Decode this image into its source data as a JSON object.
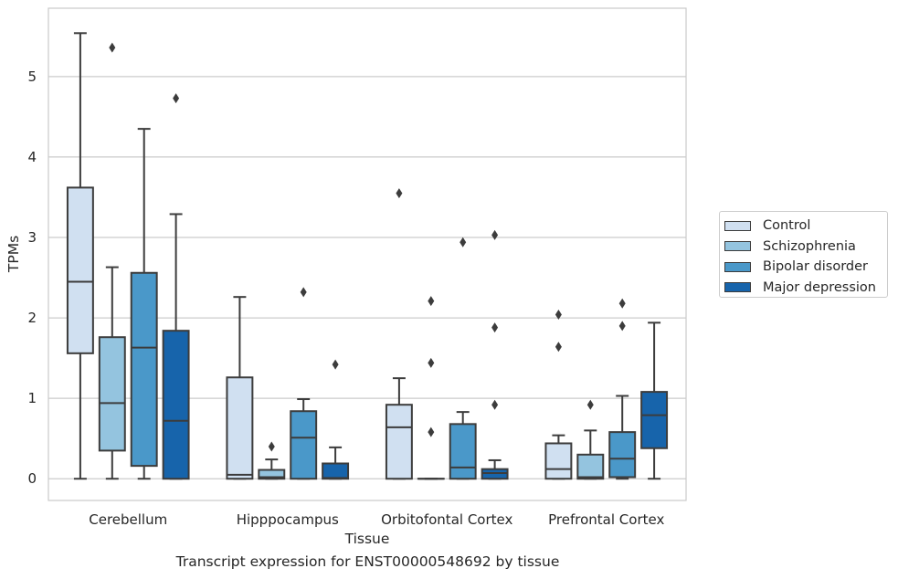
{
  "chart_data": {
    "type": "box",
    "xlabel": "Tissue",
    "ylabel": "TPMs",
    "caption": "Transcript expression for ENST00000548692 by tissue",
    "ylim": [
      -0.27,
      5.85
    ],
    "yticks": [
      0,
      1,
      2,
      3,
      4,
      5
    ],
    "categories": [
      "Cerebellum",
      "Hipppocampus",
      "Orbitofontal Cortex",
      "Prefrontal Cortex"
    ],
    "grid": "horizontal",
    "legend_position": "right",
    "series": [
      {
        "name": "Control",
        "color": "#d0e0f1",
        "boxes": [
          {
            "whislo": 0.0,
            "q1": 1.56,
            "med": 2.45,
            "q3": 3.62,
            "whishi": 5.54,
            "fliers": []
          },
          {
            "whislo": 0.0,
            "q1": 0.0,
            "med": 0.05,
            "q3": 1.26,
            "whishi": 2.26,
            "fliers": []
          },
          {
            "whislo": 0.0,
            "q1": 0.0,
            "med": 0.64,
            "q3": 0.92,
            "whishi": 1.25,
            "fliers": [
              3.55
            ]
          },
          {
            "whislo": 0.0,
            "q1": 0.0,
            "med": 0.12,
            "q3": 0.44,
            "whishi": 0.54,
            "fliers": [
              1.64,
              2.04
            ]
          }
        ]
      },
      {
        "name": "Schizophrenia",
        "color": "#94c4df",
        "boxes": [
          {
            "whislo": 0.0,
            "q1": 0.35,
            "med": 0.94,
            "q3": 1.76,
            "whishi": 2.63,
            "fliers": [
              5.36
            ]
          },
          {
            "whislo": 0.0,
            "q1": 0.0,
            "med": 0.02,
            "q3": 0.11,
            "whishi": 0.24,
            "fliers": [
              0.4
            ]
          },
          {
            "whislo": 0.0,
            "q1": 0.0,
            "med": 0.0,
            "q3": 0.0,
            "whishi": 0.0,
            "fliers": [
              0.58,
              1.44,
              2.21
            ]
          },
          {
            "whislo": 0.0,
            "q1": 0.0,
            "med": 0.02,
            "q3": 0.3,
            "whishi": 0.6,
            "fliers": [
              0.92
            ]
          }
        ]
      },
      {
        "name": "Bipolar disorder",
        "color": "#4a98c9",
        "boxes": [
          {
            "whislo": 0.0,
            "q1": 0.16,
            "med": 1.63,
            "q3": 2.56,
            "whishi": 4.35,
            "fliers": []
          },
          {
            "whislo": 0.0,
            "q1": 0.0,
            "med": 0.51,
            "q3": 0.84,
            "whishi": 0.99,
            "fliers": [
              2.32
            ]
          },
          {
            "whislo": 0.0,
            "q1": 0.0,
            "med": 0.14,
            "q3": 0.68,
            "whishi": 0.83,
            "fliers": [
              2.94
            ]
          },
          {
            "whislo": 0.0,
            "q1": 0.02,
            "med": 0.25,
            "q3": 0.58,
            "whishi": 1.03,
            "fliers": [
              1.9,
              2.18
            ]
          }
        ]
      },
      {
        "name": "Major depression",
        "color": "#1764ab",
        "boxes": [
          {
            "whislo": 0.0,
            "q1": 0.0,
            "med": 0.72,
            "q3": 1.84,
            "whishi": 3.29,
            "fliers": [
              4.73
            ]
          },
          {
            "whislo": 0.0,
            "q1": 0.0,
            "med": 0.01,
            "q3": 0.19,
            "whishi": 0.39,
            "fliers": [
              1.42
            ]
          },
          {
            "whislo": 0.0,
            "q1": 0.0,
            "med": 0.07,
            "q3": 0.12,
            "whishi": 0.23,
            "fliers": [
              0.92,
              1.88,
              3.03
            ]
          },
          {
            "whislo": 0.0,
            "q1": 0.38,
            "med": 0.79,
            "q3": 1.08,
            "whishi": 1.94,
            "fliers": []
          }
        ]
      }
    ]
  }
}
